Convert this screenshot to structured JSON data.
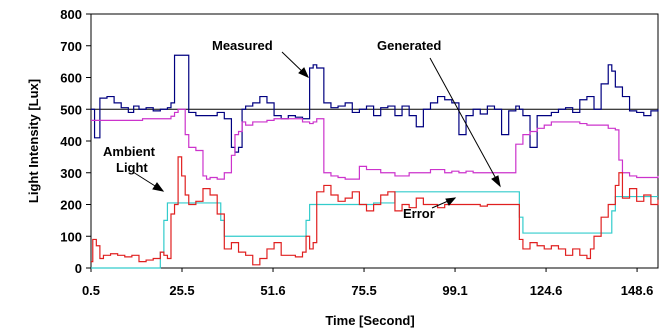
{
  "chart_data": {
    "type": "line",
    "xlabel": "Time [Second]",
    "ylabel": "Light Intensity [Lux]",
    "x_tick_labels": [
      "0.5",
      "25.5",
      "51.6",
      "75.5",
      "99.1",
      "124.6",
      "148.6"
    ],
    "xlim": [
      0.5,
      160
    ],
    "ylim": [
      0,
      800
    ],
    "y_ticks": [
      0,
      100,
      200,
      300,
      400,
      500,
      600,
      700,
      800
    ],
    "reference_line": 500,
    "annotations": [
      "Measured",
      "Generated",
      "Ambient\nLight",
      "Error"
    ],
    "series": [
      {
        "name": "Measured",
        "color": "#000080",
        "x": [
          0.5,
          1.5,
          3,
          5,
          7,
          9,
          11,
          12.5,
          14,
          16,
          18,
          20,
          22,
          23,
          24,
          26,
          28,
          30,
          32,
          34,
          36,
          38,
          40,
          41,
          42,
          43,
          44,
          46,
          48,
          50,
          52,
          54,
          56,
          58,
          60,
          61,
          62,
          63,
          64,
          66,
          68,
          70,
          72,
          74,
          76,
          78,
          80,
          82,
          84,
          86,
          88,
          90,
          92,
          94,
          96,
          98,
          100,
          102,
          104,
          106,
          108,
          110,
          112,
          114,
          116,
          118,
          120,
          121,
          122,
          124,
          126,
          128,
          130,
          132,
          134,
          136,
          138,
          140,
          142,
          144,
          146,
          147,
          148,
          150,
          152,
          154,
          156,
          158,
          160
        ],
        "y": [
          500,
          410,
          535,
          540,
          520,
          505,
          490,
          510,
          500,
          505,
          495,
          500,
          505,
          520,
          670,
          670,
          490,
          480,
          480,
          480,
          490,
          470,
          380,
          365,
          380,
          500,
          510,
          520,
          540,
          520,
          480,
          470,
          480,
          475,
          470,
          470,
          630,
          640,
          630,
          520,
          505,
          510,
          520,
          490,
          500,
          510,
          480,
          505,
          510,
          480,
          510,
          480,
          445,
          500,
          520,
          540,
          530,
          520,
          420,
          480,
          500,
          485,
          510,
          500,
          420,
          495,
          510,
          500,
          480,
          380,
          480,
          480,
          490,
          500,
          505,
          490,
          530,
          540,
          500,
          580,
          640,
          620,
          570,
          540,
          495,
          490,
          480,
          495,
          500
        ]
      },
      {
        "name": "Generated",
        "color": "#cc33cc",
        "x": [
          0.5,
          5,
          10,
          15,
          20,
          23,
          24,
          25,
          26,
          27,
          28,
          30,
          32,
          33,
          34,
          36,
          38,
          40,
          41,
          42,
          43,
          44,
          46,
          48,
          50,
          52,
          54,
          56,
          58,
          60,
          62,
          63,
          64,
          66,
          68,
          70,
          72,
          74,
          76,
          78,
          80,
          82,
          84,
          86,
          88,
          90,
          92,
          94,
          96,
          98,
          100,
          102,
          104,
          106,
          108,
          110,
          112,
          114,
          116,
          118,
          120,
          122,
          124,
          126,
          128,
          130,
          132,
          134,
          136,
          138,
          140,
          142,
          144,
          146,
          148,
          149,
          150,
          152,
          154,
          156,
          158,
          160
        ],
        "y": [
          465,
          465,
          465,
          470,
          470,
          478,
          490,
          500,
          500,
          420,
          380,
          370,
          290,
          280,
          285,
          280,
          300,
          355,
          420,
          430,
          460,
          450,
          460,
          460,
          465,
          470,
          470,
          470,
          470,
          460,
          455,
          460,
          470,
          300,
          290,
          285,
          280,
          280,
          320,
          310,
          310,
          300,
          300,
          290,
          290,
          300,
          300,
          300,
          310,
          310,
          300,
          305,
          300,
          305,
          300,
          300,
          300,
          300,
          300,
          300,
          390,
          420,
          430,
          440,
          450,
          460,
          460,
          460,
          460,
          455,
          450,
          450,
          450,
          440,
          435,
          340,
          300,
          290,
          285,
          285,
          285,
          290
        ]
      },
      {
        "name": "Ambient Light",
        "color": "#33cccc",
        "x": [
          0.5,
          5,
          10,
          15,
          19,
          20,
          21,
          22,
          24,
          26,
          28,
          30,
          35,
          36,
          37,
          38,
          40,
          45,
          50,
          55,
          58,
          60,
          61,
          62,
          64,
          66,
          70,
          75,
          80,
          84,
          86,
          88,
          90,
          95,
          100,
          105,
          110,
          115,
          118,
          120,
          121,
          122,
          125,
          130,
          135,
          140,
          142,
          144,
          146,
          147,
          148,
          150,
          155,
          160
        ],
        "y": [
          0,
          0,
          0,
          0,
          0,
          50,
          150,
          205,
          205,
          205,
          205,
          205,
          205,
          205,
          150,
          100,
          100,
          100,
          100,
          100,
          100,
          100,
          150,
          200,
          200,
          200,
          200,
          200,
          205,
          205,
          240,
          240,
          240,
          240,
          240,
          240,
          240,
          240,
          240,
          240,
          160,
          110,
          110,
          110,
          110,
          110,
          110,
          110,
          110,
          180,
          225,
          225,
          225,
          225
        ]
      },
      {
        "name": "Error",
        "color": "#e02020",
        "x": [
          0.5,
          1,
          2,
          3,
          4,
          6,
          8,
          10,
          12,
          14,
          16,
          18,
          20,
          21,
          22,
          23,
          24,
          25,
          26,
          27,
          28,
          30,
          32,
          34,
          36,
          38,
          40,
          42,
          44,
          46,
          48,
          50,
          52,
          54,
          56,
          58,
          60,
          61,
          62,
          63,
          64,
          66,
          68,
          70,
          72,
          74,
          76,
          78,
          80,
          82,
          84,
          86,
          88,
          90,
          92,
          94,
          96,
          98,
          100,
          102,
          104,
          106,
          108,
          110,
          112,
          114,
          116,
          118,
          120,
          121,
          122,
          124,
          126,
          128,
          130,
          132,
          134,
          136,
          138,
          140,
          141,
          142,
          144,
          146,
          148,
          149,
          150,
          152,
          154,
          156,
          158,
          160
        ],
        "y": [
          20,
          90,
          70,
          30,
          40,
          45,
          40,
          35,
          40,
          20,
          25,
          30,
          50,
          40,
          30,
          170,
          200,
          350,
          290,
          230,
          200,
          210,
          250,
          230,
          170,
          60,
          80,
          50,
          40,
          10,
          30,
          60,
          80,
          40,
          40,
          35,
          50,
          100,
          60,
          80,
          240,
          260,
          230,
          210,
          220,
          240,
          200,
          180,
          200,
          230,
          240,
          180,
          200,
          190,
          220,
          200,
          200,
          190,
          200,
          200,
          200,
          200,
          200,
          195,
          200,
          200,
          200,
          200,
          200,
          90,
          60,
          80,
          70,
          60,
          70,
          60,
          40,
          60,
          40,
          30,
          60,
          100,
          160,
          200,
          260,
          300,
          220,
          250,
          210,
          230,
          200,
          215
        ]
      }
    ]
  }
}
